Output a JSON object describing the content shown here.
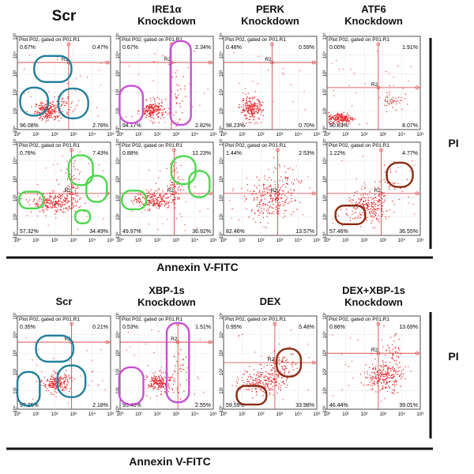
{
  "figure": {
    "xlabel": "Annexin V-FITC",
    "ylabel": "PI",
    "gate_label": "Plot P02, gated on P01.R1",
    "region_label": "R2",
    "x_ticks": [
      "10⁰",
      "10¹",
      "10²",
      "10³",
      "10⁴",
      "10⁵"
    ],
    "y_ticks": [
      "10⁰",
      "10¹",
      "10²",
      "10³",
      "10⁴",
      "10⁵"
    ],
    "colors": {
      "dots": "#e8252a",
      "gate_lines": "#d83a3a",
      "teal": "#1f7f9a",
      "magenta": "#c94fd6",
      "green": "#4bd84b",
      "brown": "#8a2b10"
    },
    "top_titles": [
      {
        "lines": [
          "Scr"
        ]
      },
      {
        "lines": [
          "IRE1α",
          "Knockdown"
        ]
      },
      {
        "lines": [
          "PERK",
          "Knockdown"
        ]
      },
      {
        "lines": [
          "ATF6",
          "Knockdown"
        ]
      }
    ],
    "bottom_titles": [
      {
        "lines": [
          "Scr"
        ]
      },
      {
        "lines": [
          "XBP-1s",
          "Knockdown"
        ]
      },
      {
        "lines": [
          "DEX"
        ]
      },
      {
        "lines": [
          "DEX+XBP-1s",
          "Knockdown"
        ]
      }
    ]
  },
  "chart_data": [
    {
      "type": "scatter",
      "panel": "top-row1-Scr",
      "quadrants": {
        "upper_left": "0.67%",
        "upper_right": "0.47%",
        "lower_left": "96.08%",
        "lower_right": "2.78%"
      }
    },
    {
      "type": "scatter",
      "panel": "top-row1-IRE1a",
      "quadrants": {
        "upper_left": "0.67%",
        "upper_right": "2.34%",
        "lower_left": "94.17%",
        "lower_right": "2.82%"
      }
    },
    {
      "type": "scatter",
      "panel": "top-row1-PERK",
      "quadrants": {
        "upper_left": "0.48%",
        "upper_right": "0.59%",
        "lower_left": "98.23%",
        "lower_right": "0.70%"
      }
    },
    {
      "type": "scatter",
      "panel": "top-row1-ATF6",
      "quadrants": {
        "upper_left": "0.00%",
        "upper_right": "1.91%",
        "lower_left": "90.03%",
        "lower_right": "8.07%"
      }
    },
    {
      "type": "scatter",
      "panel": "top-row2-Scr",
      "quadrants": {
        "upper_left": "0.76%",
        "upper_right": "7.43%",
        "lower_left": "57.32%",
        "lower_right": "34.49%"
      }
    },
    {
      "type": "scatter",
      "panel": "top-row2-IRE1a",
      "quadrants": {
        "upper_left": "0.88%",
        "upper_right": "12.23%",
        "lower_left": "49.97%",
        "lower_right": "36.92%"
      }
    },
    {
      "type": "scatter",
      "panel": "top-row2-PERK",
      "quadrants": {
        "upper_left": "1.44%",
        "upper_right": "2.53%",
        "lower_left": "82.46%",
        "lower_right": "13.57%"
      }
    },
    {
      "type": "scatter",
      "panel": "top-row2-ATF6",
      "quadrants": {
        "upper_left": "1.22%",
        "upper_right": "4.77%",
        "lower_left": "57.46%",
        "lower_right": "36.55%"
      }
    },
    {
      "type": "scatter",
      "panel": "bottom-Scr",
      "quadrants": {
        "upper_left": "0.35%",
        "upper_right": "0.21%",
        "lower_left": "97.25%",
        "lower_right": "2.18%"
      }
    },
    {
      "type": "scatter",
      "panel": "bottom-XBP1s",
      "quadrants": {
        "upper_left": "0.53%",
        "upper_right": "1.51%",
        "lower_left": "95.40%",
        "lower_right": "2.55%"
      }
    },
    {
      "type": "scatter",
      "panel": "bottom-DEX",
      "quadrants": {
        "upper_left": "0.95%",
        "upper_right": "5.48%",
        "lower_left": "59.59%",
        "lower_right": "33.98%"
      }
    },
    {
      "type": "scatter",
      "panel": "bottom-DEX-XBP1s",
      "quadrants": {
        "upper_left": "0.86%",
        "upper_right": "13.69%",
        "lower_left": "46.44%",
        "lower_right": "39.01%"
      }
    }
  ]
}
